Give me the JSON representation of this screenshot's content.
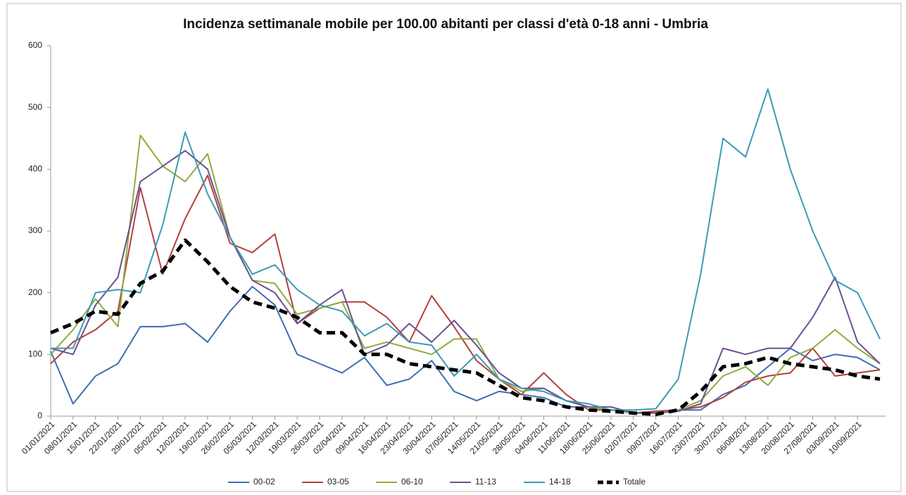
{
  "chart_data": {
    "type": "line",
    "title": "Incidenza settimanale mobile per 100.00 abitanti per classi d'età 0-18 anni - Umbria",
    "categories": [
      "01/01/2021",
      "08/01/2021",
      "15/01/2021",
      "22/01/2021",
      "29/01/2021",
      "05/02/2021",
      "12/02/2021",
      "19/02/2021",
      "26/02/2021",
      "05/03/2021",
      "12/03/2021",
      "19/03/2021",
      "26/03/2021",
      "02/04/2021",
      "09/04/2021",
      "16/04/2021",
      "23/04/2021",
      "30/04/2021",
      "07/05/2021",
      "14/05/2021",
      "21/05/2021",
      "28/05/2021",
      "04/06/2021",
      "11/06/2021",
      "18/06/2021",
      "25/06/2021",
      "02/07/2021",
      "09/07/2021",
      "16/07/2021",
      "23/07/2021",
      "30/07/2021",
      "06/08/2021",
      "13/08/2021",
      "20/08/2021",
      "27/08/2021",
      "03/09/2021",
      "10/09/2021",
      null
    ],
    "series": [
      {
        "name": "00-02",
        "color": "#3e6eb0",
        "values": [
          105,
          20,
          65,
          85,
          145,
          145,
          150,
          120,
          170,
          210,
          180,
          100,
          85,
          70,
          95,
          50,
          60,
          90,
          40,
          25,
          40,
          35,
          30,
          15,
          15,
          10,
          5,
          8,
          10,
          10,
          35,
          50,
          80,
          110,
          90,
          100,
          95,
          75
        ]
      },
      {
        "name": "03-05",
        "color": "#b3403d",
        "values": [
          85,
          120,
          140,
          170,
          370,
          230,
          320,
          390,
          280,
          265,
          295,
          150,
          175,
          185,
          185,
          160,
          120,
          195,
          145,
          90,
          60,
          35,
          70,
          35,
          10,
          10,
          5,
          8,
          10,
          15,
          30,
          55,
          65,
          70,
          110,
          65,
          70,
          75
        ]
      },
      {
        "name": "06-10",
        "color": "#8fad3c",
        "values": [
          100,
          140,
          190,
          145,
          455,
          405,
          380,
          425,
          290,
          220,
          215,
          165,
          175,
          185,
          110,
          120,
          110,
          100,
          125,
          125,
          60,
          40,
          45,
          25,
          15,
          10,
          5,
          5,
          10,
          25,
          65,
          80,
          50,
          95,
          110,
          140,
          110,
          85
        ]
      },
      {
        "name": "11-13",
        "color": "#6d4f94",
        "values": [
          110,
          100,
          180,
          225,
          380,
          405,
          430,
          400,
          290,
          220,
          200,
          150,
          180,
          205,
          100,
          115,
          150,
          120,
          155,
          115,
          70,
          45,
          45,
          25,
          15,
          15,
          5,
          5,
          8,
          20,
          110,
          100,
          110,
          110,
          160,
          225,
          120,
          85
        ]
      },
      {
        "name": "14-18",
        "color": "#3a9bb5",
        "values": [
          110,
          110,
          200,
          205,
          200,
          310,
          460,
          360,
          290,
          230,
          245,
          205,
          180,
          170,
          130,
          150,
          120,
          115,
          65,
          100,
          60,
          45,
          40,
          25,
          20,
          10,
          10,
          12,
          60,
          230,
          450,
          420,
          530,
          400,
          300,
          220,
          200,
          125
        ]
      },
      {
        "name": "Totale",
        "color": "#000000",
        "dashed": true,
        "values": [
          135,
          150,
          170,
          165,
          215,
          235,
          285,
          250,
          210,
          185,
          175,
          160,
          135,
          135,
          100,
          100,
          85,
          80,
          75,
          70,
          50,
          30,
          25,
          15,
          10,
          8,
          5,
          3,
          10,
          40,
          80,
          85,
          95,
          85,
          80,
          75,
          65,
          60
        ]
      }
    ],
    "ylim": [
      0,
      600
    ],
    "yticks": [
      0,
      100,
      200,
      300,
      400,
      500,
      600
    ],
    "grid": false,
    "legend": "bottom"
  }
}
